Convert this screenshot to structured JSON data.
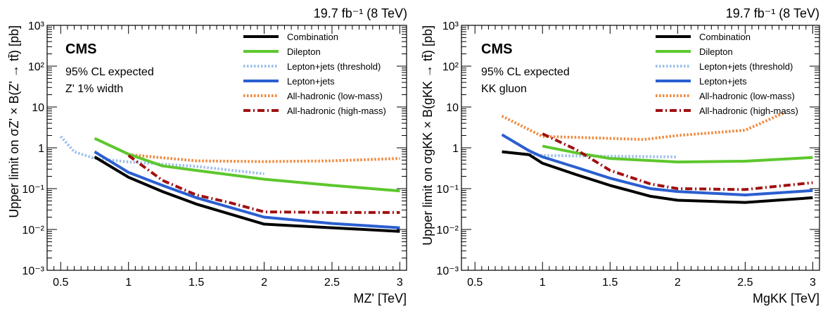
{
  "chart_data": [
    {
      "type": "line",
      "lumi_label": "19.7 fb⁻¹ (8 TeV)",
      "experiment": "CMS",
      "annotation_line1": "95% CL expected",
      "annotation_line2": "Z' 1% width",
      "ylabel": "Upper limit on σZ' × B(Z' → tt̄) [pb]",
      "xlabel": "MZ' [TeV]",
      "xlim": [
        0.4,
        3.05
      ],
      "ylim": [
        0.001,
        1000
      ],
      "yscale": "log",
      "x_ticks": [
        "0.5",
        "1",
        "1.5",
        "2",
        "2.5",
        "3"
      ],
      "y_ticks": [
        "10⁻³",
        "10⁻²",
        "10⁻¹",
        "1",
        "10",
        "10²",
        "10³"
      ],
      "legend_position": "top-right",
      "series": [
        {
          "name": "Combination",
          "color": "#000000",
          "dash": "solid",
          "x": [
            0.75,
            1.0,
            1.25,
            1.5,
            2.0,
            2.5,
            3.0
          ],
          "y": [
            0.6,
            0.19,
            0.085,
            0.042,
            0.0135,
            0.011,
            0.009
          ]
        },
        {
          "name": "Dilepton",
          "color": "#5ec72d",
          "dash": "solid",
          "x": [
            0.75,
            1.0,
            1.25,
            1.5,
            2.0,
            2.5,
            3.0
          ],
          "y": [
            1.7,
            0.7,
            0.36,
            0.28,
            0.17,
            0.12,
            0.088
          ]
        },
        {
          "name": "Lepton+jets (threshold)",
          "color": "#9ebfea",
          "dash": "dotted",
          "x": [
            0.5,
            0.6,
            0.75,
            1.0,
            1.5,
            2.0
          ],
          "y": [
            1.9,
            0.8,
            0.55,
            0.45,
            0.35,
            0.23
          ]
        },
        {
          "name": "Lepton+jets",
          "color": "#2a5fd0",
          "dash": "solid",
          "x": [
            0.75,
            1.0,
            1.25,
            1.5,
            2.0,
            2.5,
            3.0
          ],
          "y": [
            0.8,
            0.25,
            0.12,
            0.06,
            0.02,
            0.014,
            0.011
          ]
        },
        {
          "name": "All-hadronic (low-mass)",
          "color": "#f0883c",
          "dash": "dotted",
          "x": [
            1.0,
            1.5,
            2.0,
            2.5,
            3.0
          ],
          "y": [
            0.68,
            0.48,
            0.46,
            0.48,
            0.55
          ]
        },
        {
          "name": "All-hadronic (high-mass)",
          "color": "#a01010",
          "dash": "dashdot",
          "x": [
            1.0,
            1.25,
            1.5,
            1.75,
            2.0,
            2.5,
            3.0
          ],
          "y": [
            0.65,
            0.16,
            0.07,
            0.045,
            0.027,
            0.026,
            0.026
          ]
        }
      ]
    },
    {
      "type": "line",
      "lumi_label": "19.7 fb⁻¹ (8 TeV)",
      "experiment": "CMS",
      "annotation_line1": "95% CL expected",
      "annotation_line2": "KK gluon",
      "ylabel": "Upper limit on σgKK × B(gKK → tt̄) [pb]",
      "xlabel": "MgKK [TeV]",
      "xlim": [
        0.4,
        3.05
      ],
      "ylim": [
        0.001,
        1000
      ],
      "yscale": "log",
      "x_ticks": [
        "0.5",
        "1",
        "1.5",
        "2",
        "2.5",
        "3"
      ],
      "y_ticks": [
        "10⁻³",
        "10⁻²",
        "10⁻¹",
        "1",
        "10",
        "10²",
        "10³"
      ],
      "legend_position": "top-right",
      "series": [
        {
          "name": "Combination",
          "color": "#000000",
          "dash": "solid",
          "x": [
            0.7,
            0.9,
            1.0,
            1.25,
            1.5,
            1.8,
            2.0,
            2.5,
            3.0
          ],
          "y": [
            0.8,
            0.68,
            0.42,
            0.22,
            0.12,
            0.065,
            0.052,
            0.046,
            0.06
          ]
        },
        {
          "name": "Dilepton",
          "color": "#5ec72d",
          "dash": "solid",
          "x": [
            1.0,
            1.25,
            1.5,
            2.0,
            2.5,
            3.0
          ],
          "y": [
            1.1,
            0.75,
            0.55,
            0.45,
            0.47,
            0.58
          ]
        },
        {
          "name": "Lepton+jets (threshold)",
          "color": "#9ebfea",
          "dash": "dotted",
          "x": [
            0.7,
            0.9,
            1.0,
            1.5,
            2.0
          ],
          "y": [
            0.8,
            0.7,
            0.65,
            0.62,
            0.6
          ]
        },
        {
          "name": "Lepton+jets",
          "color": "#2a5fd0",
          "dash": "solid",
          "x": [
            0.7,
            0.9,
            1.0,
            1.25,
            1.5,
            1.8,
            2.0,
            2.5,
            3.0
          ],
          "y": [
            2.1,
            0.85,
            0.6,
            0.33,
            0.18,
            0.1,
            0.085,
            0.07,
            0.09
          ]
        },
        {
          "name": "All-hadronic (low-mass)",
          "color": "#f0883c",
          "dash": "dotted",
          "x": [
            0.7,
            1.0,
            1.5,
            1.75,
            2.0,
            2.5,
            2.8
          ],
          "y": [
            6.0,
            1.9,
            1.7,
            1.6,
            2.0,
            2.7,
            7.5
          ]
        },
        {
          "name": "All-hadronic (high-mass)",
          "color": "#a01010",
          "dash": "dashdot",
          "x": [
            1.0,
            1.25,
            1.5,
            1.8,
            2.0,
            2.5,
            3.0
          ],
          "y": [
            2.2,
            0.9,
            0.28,
            0.13,
            0.1,
            0.095,
            0.14
          ]
        }
      ]
    }
  ]
}
